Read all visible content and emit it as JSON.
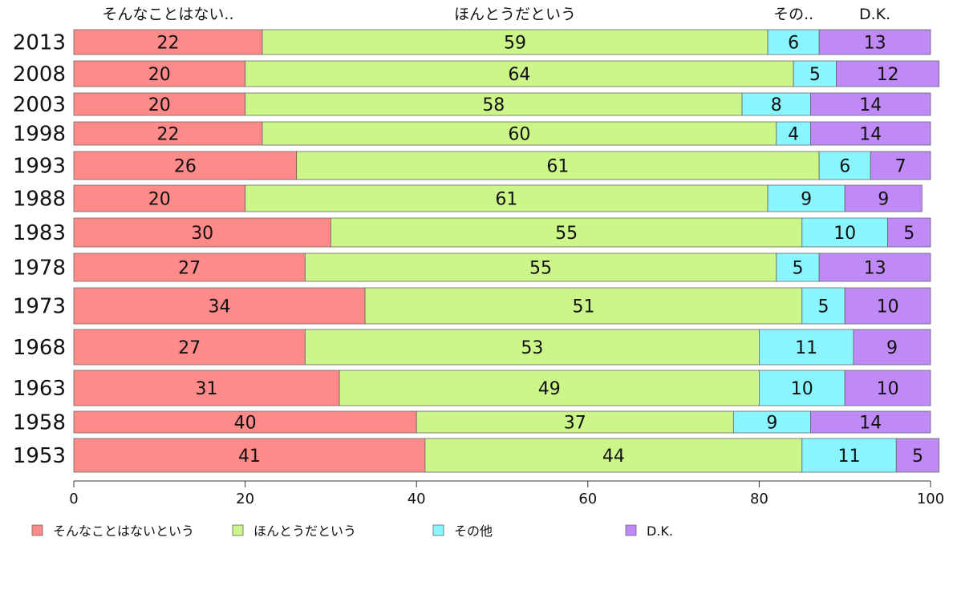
{
  "chart_data": {
    "type": "bar",
    "orientation": "horizontal",
    "stacked": true,
    "categories": [
      "2013",
      "2008",
      "2003",
      "1998",
      "1993",
      "1988",
      "1983",
      "1978",
      "1973",
      "1968",
      "1963",
      "1958",
      "1953"
    ],
    "series": [
      {
        "name": "そんなことはないという",
        "short": "そんなことはない..",
        "color": "#ff8a8a",
        "values": [
          22,
          20,
          20,
          22,
          26,
          20,
          30,
          27,
          34,
          27,
          31,
          40,
          41
        ]
      },
      {
        "name": "ほんとうだという",
        "short": "ほんとうだという",
        "color": "#ccf58a",
        "values": [
          59,
          64,
          58,
          60,
          61,
          61,
          55,
          55,
          51,
          53,
          49,
          37,
          44
        ]
      },
      {
        "name": "その他",
        "short": "その..",
        "color": "#8af5ff",
        "values": [
          6,
          5,
          8,
          4,
          6,
          9,
          10,
          5,
          5,
          11,
          10,
          9,
          11
        ]
      },
      {
        "name": "D.K.",
        "short": "D.K.",
        "color": "#bf8af5",
        "values": [
          13,
          12,
          14,
          14,
          7,
          9,
          5,
          13,
          10,
          9,
          10,
          14,
          5
        ]
      }
    ],
    "xlim": [
      0,
      100
    ],
    "xticks": [
      "0",
      "20",
      "40",
      "60",
      "80",
      "100"
    ],
    "grid": false,
    "legend_position": "bottom"
  }
}
